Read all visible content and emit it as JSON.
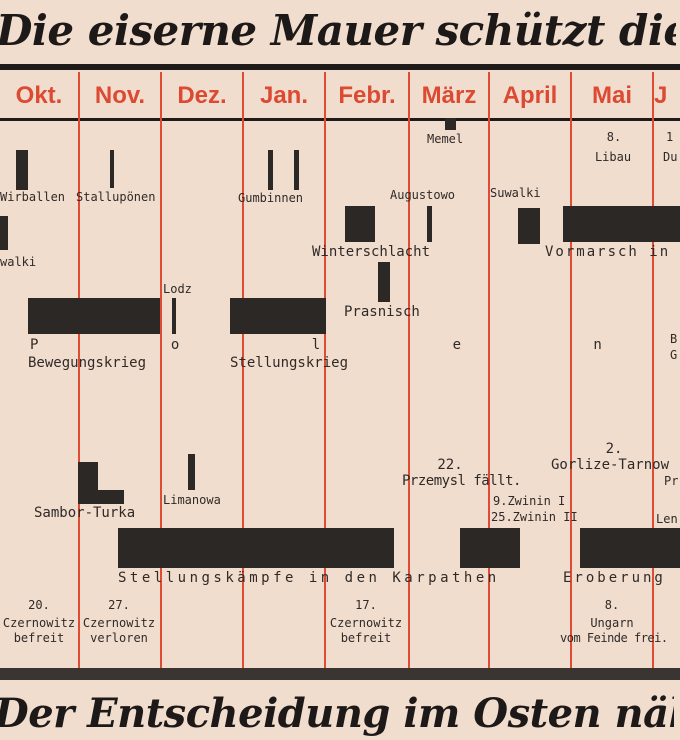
{
  "title": "Die eiserne Mauer schützt die Heimat!",
  "footer": "Der Entscheidung im Osten näher!",
  "months": [
    "Okt.",
    "Nov.",
    "Dez.",
    "Jan.",
    "Febr.",
    "März",
    "April",
    "Mai",
    "J"
  ],
  "events": {
    "memel": "Memel",
    "libau_day": "8.",
    "libau": "Libau",
    "dub_day": "1",
    "dub": "Du",
    "wirballen": "Wirballen",
    "stalluponen": "Stallupönen",
    "gumbinnen": "Gumbinnen",
    "augustowo": "Augustowo",
    "suwalki": "Suwalki",
    "walki": "walki",
    "winterschlacht": "Winterschlacht",
    "vormarsch": "Vormarsch in",
    "lodz": "Lodz",
    "prasnisch": "Prasnisch",
    "polen": "P o l e n",
    "bewegungskrieg": "Bewegungskrieg",
    "stellungskrieg": "Stellungskrieg",
    "b_edge": "B",
    "g_edge": "G",
    "gorlize_day": "2.",
    "gorlize": "Gorlize-Tarnow",
    "pr_edge": "Pr",
    "przemysl_day": "22.",
    "przemysl": "Przemysl fällt.",
    "zwinin1": "9.Zwinin I",
    "zwinin2": "25.Zwinin II",
    "len_edge": "Len",
    "limanowa": "Limanowa",
    "sambor": "Sambor-Turka",
    "karpathen": "Stellungskämpfe in den Karpathen",
    "eroberung": "Eroberung",
    "cz1_day": "20.",
    "cz1_a": "Czernowitz",
    "cz1_b": "befreit",
    "cz2_day": "27.",
    "cz2_a": "Czernowitz",
    "cz2_b": "verloren",
    "cz3_day": "17.",
    "cz3_a": "Czernowitz",
    "cz3_b": "befreit",
    "ungarn_day": "8.",
    "ungarn_a": "Ungarn",
    "ungarn_b": "vom Feinde frei."
  }
}
